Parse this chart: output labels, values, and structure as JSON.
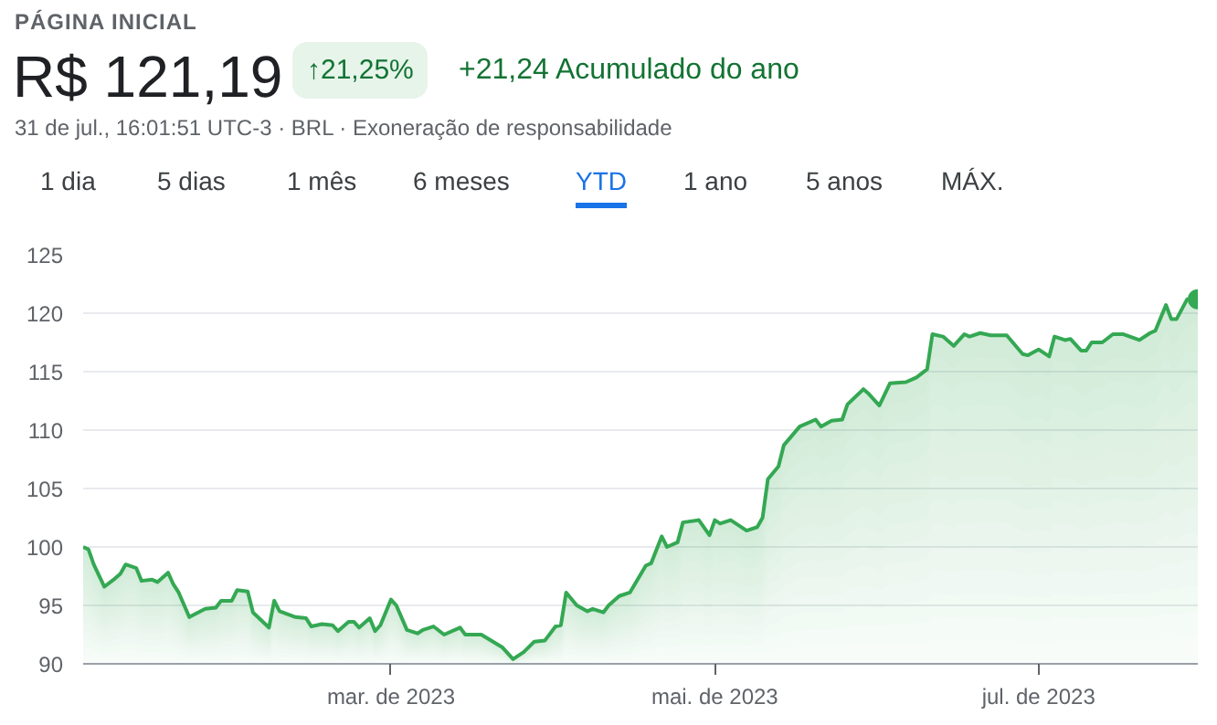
{
  "chart_data": {
    "type": "area",
    "title": "R$ 121,19",
    "subtitle": "31 de jul., 16:01:51 UTC-3 · BRL · Exoneração de responsabilidade",
    "annotations": [
      "PÁGINA INICIAL",
      "↑21,25%",
      "+21,24 Acumulado do ano",
      "1 dia",
      "5 dias",
      "1 mês",
      "6 meses",
      "YTD",
      "1 ano",
      "5 anos",
      "MÁX."
    ],
    "x": [
      "2023-01-02",
      "2023-01-03",
      "2023-01-04",
      "2023-01-06",
      "2023-01-08",
      "2023-01-09",
      "2023-01-10",
      "2023-01-12",
      "2023-01-13",
      "2023-01-15",
      "2023-01-16",
      "2023-01-18",
      "2023-01-19",
      "2023-01-20",
      "2023-01-22",
      "2023-01-25",
      "2023-01-27",
      "2023-01-28",
      "2023-01-30",
      "2023-01-31",
      "2023-02-02",
      "2023-02-03",
      "2023-02-06",
      "2023-02-07",
      "2023-02-08",
      "2023-02-11",
      "2023-02-13",
      "2023-02-14",
      "2023-02-16",
      "2023-02-18",
      "2023-02-19",
      "2023-02-21",
      "2023-02-22",
      "2023-02-23",
      "2023-02-25",
      "2023-02-26",
      "2023-02-27",
      "2023-03-01",
      "2023-03-02",
      "2023-03-04",
      "2023-03-06",
      "2023-03-07",
      "2023-03-09",
      "2023-03-11",
      "2023-03-14",
      "2023-03-15",
      "2023-03-18",
      "2023-03-22",
      "2023-03-24",
      "2023-03-26",
      "2023-03-28",
      "2023-03-30",
      "2023-04-01",
      "2023-04-02",
      "2023-04-03",
      "2023-04-05",
      "2023-04-07",
      "2023-04-08",
      "2023-04-10",
      "2023-04-11",
      "2023-04-13",
      "2023-04-15",
      "2023-04-18",
      "2023-04-19",
      "2023-04-21",
      "2023-04-22",
      "2023-04-24",
      "2023-04-25",
      "2023-04-28",
      "2023-04-30",
      "2023-05-01",
      "2023-05-02",
      "2023-05-04",
      "2023-05-07",
      "2023-05-09",
      "2023-05-10",
      "2023-05-11",
      "2023-05-13",
      "2023-05-14",
      "2023-05-17",
      "2023-05-20",
      "2023-05-21",
      "2023-05-23",
      "2023-05-25",
      "2023-05-26",
      "2023-05-29",
      "2023-05-30",
      "2023-06-01",
      "2023-06-03",
      "2023-06-06",
      "2023-06-08",
      "2023-06-10",
      "2023-06-11",
      "2023-06-13",
      "2023-06-15",
      "2023-06-17",
      "2023-06-18",
      "2023-06-20",
      "2023-06-22",
      "2023-06-25",
      "2023-06-28",
      "2023-06-29",
      "2023-07-01",
      "2023-07-03",
      "2023-07-04",
      "2023-07-06",
      "2023-07-07",
      "2023-07-09",
      "2023-07-10",
      "2023-07-11",
      "2023-07-13",
      "2023-07-15",
      "2023-07-17",
      "2023-07-20",
      "2023-07-22",
      "2023-07-23",
      "2023-07-25",
      "2023-07-26",
      "2023-07-27",
      "2023-07-29",
      "2023-07-31"
    ],
    "series": [
      {
        "color": "#34a853",
        "values": [
          100.0,
          99.8,
          98.5,
          96.6,
          97.3,
          97.7,
          98.5,
          98.2,
          97.1,
          97.2,
          97.0,
          97.8,
          96.8,
          96.1,
          94.0,
          94.7,
          94.8,
          95.4,
          95.4,
          96.3,
          96.2,
          94.4,
          93.1,
          95.4,
          94.5,
          94.0,
          93.9,
          93.2,
          93.4,
          93.3,
          92.8,
          93.6,
          93.6,
          93.1,
          93.9,
          92.8,
          93.3,
          95.5,
          95.0,
          92.9,
          92.6,
          92.9,
          93.2,
          92.5,
          93.1,
          92.5,
          92.5,
          91.4,
          90.4,
          91.0,
          91.9,
          92.0,
          93.2,
          93.3,
          96.1,
          95.0,
          94.5,
          94.7,
          94.4,
          95.0,
          95.8,
          96.1,
          98.4,
          98.6,
          100.9,
          100.0,
          100.4,
          102.1,
          102.3,
          101.0,
          102.3,
          102.0,
          102.3,
          101.4,
          101.7,
          102.5,
          105.8,
          106.9,
          108.7,
          110.3,
          110.9,
          110.3,
          110.8,
          110.9,
          112.2,
          113.5,
          113.1,
          112.1,
          114.0,
          114.1,
          114.5,
          115.2,
          118.2,
          118.0,
          117.2,
          118.2,
          118.0,
          118.3,
          118.1,
          118.1,
          116.5,
          116.4,
          116.9,
          116.3,
          118.0,
          117.7,
          117.8,
          116.8,
          116.8,
          117.5,
          117.5,
          118.2,
          118.2,
          117.7,
          118.3,
          118.5,
          120.7,
          119.5,
          119.5,
          121.2,
          121.2
        ]
      }
    ],
    "xlim": [
      "2023-01-02",
      "2023-07-31"
    ],
    "xticks": [
      {
        "value": "2023-03-01",
        "label": "mar. de 2023"
      },
      {
        "value": "2023-05-01",
        "label": "mai. de 2023"
      },
      {
        "value": "2023-07-01",
        "label": "jul. de 2023"
      }
    ],
    "ylim": [
      90,
      125
    ],
    "yticks": [
      90,
      95,
      100,
      105,
      110,
      115,
      120,
      125
    ],
    "grid": "y",
    "marker": "none",
    "line_style": "solid"
  }
}
